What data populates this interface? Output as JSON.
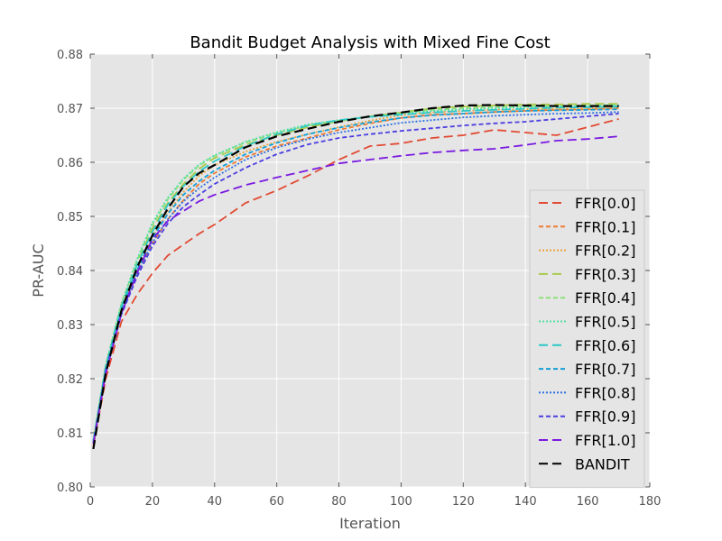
{
  "chart_data": {
    "type": "line",
    "title": "Bandit Budget Analysis with Mixed Fine Cost",
    "xlabel": "Iteration",
    "ylabel": "PR-AUC",
    "xlim": [
      0,
      180
    ],
    "ylim": [
      0.8,
      0.88
    ],
    "xticks": [
      0,
      20,
      40,
      60,
      80,
      100,
      120,
      140,
      160,
      180
    ],
    "yticks": [
      0.8,
      0.81,
      0.82,
      0.83,
      0.84,
      0.85,
      0.86,
      0.87,
      0.88
    ],
    "xtick_labels": [
      "0",
      "20",
      "40",
      "60",
      "80",
      "100",
      "120",
      "140",
      "160",
      "180"
    ],
    "ytick_labels": [
      "0.80",
      "0.81",
      "0.82",
      "0.83",
      "0.84",
      "0.85",
      "0.86",
      "0.87",
      "0.88"
    ],
    "grid": true,
    "legend_position": "right",
    "x": [
      1,
      5,
      10,
      15,
      20,
      25,
      30,
      35,
      40,
      50,
      60,
      70,
      80,
      90,
      100,
      110,
      120,
      130,
      140,
      150,
      160,
      170
    ],
    "series": [
      {
        "name": "FFR[0.0]",
        "color": "#e24a33",
        "dash": "10,5",
        "values": [
          0.8075,
          0.82,
          0.8305,
          0.8355,
          0.8395,
          0.8428,
          0.8448,
          0.8468,
          0.8485,
          0.8525,
          0.8548,
          0.8575,
          0.8605,
          0.863,
          0.8635,
          0.8645,
          0.865,
          0.866,
          0.8655,
          0.865,
          0.8665,
          0.868
        ]
      },
      {
        "name": "FFR[0.1]",
        "color": "#ef7a32",
        "dash": "5,3",
        "values": [
          0.808,
          0.8215,
          0.832,
          0.839,
          0.845,
          0.8495,
          0.853,
          0.856,
          0.858,
          0.861,
          0.863,
          0.8645,
          0.866,
          0.8672,
          0.8682,
          0.8688,
          0.869,
          0.8693,
          0.8695,
          0.8697,
          0.8698,
          0.87
        ]
      },
      {
        "name": "FFR[0.2]",
        "color": "#e9a33e",
        "dash": "2,2",
        "values": [
          0.808,
          0.822,
          0.8325,
          0.84,
          0.8462,
          0.8508,
          0.8545,
          0.8575,
          0.8595,
          0.862,
          0.8638,
          0.8652,
          0.8665,
          0.8677,
          0.8687,
          0.8692,
          0.8695,
          0.8697,
          0.8698,
          0.8699,
          0.87,
          0.8701
        ]
      },
      {
        "name": "FFR[0.3]",
        "color": "#a9c94b",
        "dash": "10,5",
        "values": [
          0.8085,
          0.8225,
          0.8335,
          0.8412,
          0.8478,
          0.8525,
          0.856,
          0.8588,
          0.8608,
          0.8633,
          0.865,
          0.8665,
          0.8676,
          0.8685,
          0.8692,
          0.87,
          0.8703,
          0.8705,
          0.8707,
          0.8707,
          0.8708,
          0.8708
        ]
      },
      {
        "name": "FFR[0.4]",
        "color": "#8ee07a",
        "dash": "5,3",
        "values": [
          0.8085,
          0.8225,
          0.8338,
          0.8418,
          0.8485,
          0.8532,
          0.8568,
          0.8594,
          0.8612,
          0.8637,
          0.8654,
          0.8668,
          0.8677,
          0.8685,
          0.8691,
          0.8697,
          0.87,
          0.8702,
          0.8703,
          0.8704,
          0.8705,
          0.8706
        ]
      },
      {
        "name": "FFR[0.5]",
        "color": "#52e0a6",
        "dash": "2,2",
        "values": [
          0.8085,
          0.8225,
          0.8338,
          0.842,
          0.8488,
          0.8535,
          0.857,
          0.8596,
          0.8613,
          0.8638,
          0.8656,
          0.867,
          0.8678,
          0.8684,
          0.869,
          0.8695,
          0.8698,
          0.87,
          0.8702,
          0.8703,
          0.8704,
          0.8705
        ]
      },
      {
        "name": "FFR[0.6]",
        "color": "#2cc8c8",
        "dash": "10,5",
        "values": [
          0.8085,
          0.8222,
          0.8332,
          0.841,
          0.8472,
          0.8522,
          0.8556,
          0.8583,
          0.8602,
          0.863,
          0.8652,
          0.8668,
          0.8678,
          0.8684,
          0.8688,
          0.8692,
          0.8695,
          0.8697,
          0.8699,
          0.8701,
          0.8702,
          0.8703
        ]
      },
      {
        "name": "FFR[0.7]",
        "color": "#12a0d8",
        "dash": "5,3",
        "values": [
          0.808,
          0.8218,
          0.8325,
          0.84,
          0.846,
          0.8505,
          0.854,
          0.8565,
          0.8585,
          0.8615,
          0.8636,
          0.8652,
          0.8664,
          0.8674,
          0.8682,
          0.8687,
          0.869,
          0.8693,
          0.8695,
          0.8696,
          0.8697,
          0.8698
        ]
      },
      {
        "name": "FFR[0.8]",
        "color": "#2a6fe0",
        "dash": "2,2",
        "values": [
          0.808,
          0.8215,
          0.832,
          0.8393,
          0.8452,
          0.8495,
          0.8528,
          0.8552,
          0.8572,
          0.8605,
          0.8627,
          0.8643,
          0.8655,
          0.8664,
          0.8673,
          0.8678,
          0.8683,
          0.8686,
          0.8688,
          0.869,
          0.8691,
          0.8693
        ]
      },
      {
        "name": "FFR[0.9]",
        "color": "#4a3ee0",
        "dash": "5,3",
        "values": [
          0.808,
          0.8212,
          0.8318,
          0.8388,
          0.8445,
          0.8487,
          0.8518,
          0.854,
          0.856,
          0.859,
          0.8615,
          0.8633,
          0.8645,
          0.8652,
          0.8658,
          0.8663,
          0.8668,
          0.8672,
          0.8675,
          0.868,
          0.8685,
          0.869
        ]
      },
      {
        "name": "FFR[1.0]",
        "color": "#7a1ae0",
        "dash": "10,5",
        "values": [
          0.808,
          0.821,
          0.832,
          0.8395,
          0.8458,
          0.8492,
          0.851,
          0.8528,
          0.854,
          0.8558,
          0.8572,
          0.8585,
          0.8598,
          0.8605,
          0.8612,
          0.8618,
          0.8622,
          0.8625,
          0.8632,
          0.864,
          0.8643,
          0.8648
        ]
      },
      {
        "name": "BANDIT",
        "color": "#000000",
        "dash": "10,5",
        "values": [
          0.807,
          0.821,
          0.8325,
          0.8405,
          0.8465,
          0.8515,
          0.8555,
          0.858,
          0.8595,
          0.8628,
          0.8648,
          0.8662,
          0.8675,
          0.8685,
          0.8692,
          0.87,
          0.8705,
          0.8706,
          0.8705,
          0.8704,
          0.8704,
          0.8704
        ]
      }
    ]
  }
}
